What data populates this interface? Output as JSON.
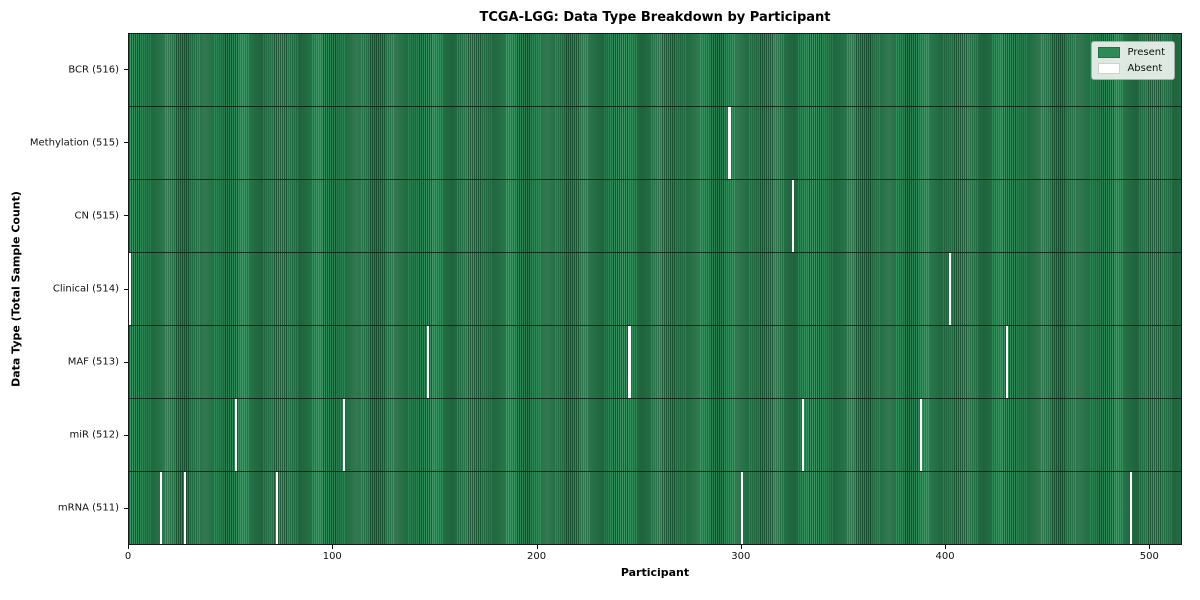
{
  "title": "TCGA-LGG: Data Type Breakdown by Participant",
  "legend": {
    "present_label": "Present",
    "absent_label": "Absent"
  },
  "colors": {
    "present": "#2e8b57",
    "absent": "#ffffff",
    "cell_edge": "#1d5c38",
    "legend_bg": "#eef3ee"
  },
  "chart_data": {
    "type": "heatmap",
    "title": "TCGA-LGG: Data Type Breakdown by Participant",
    "xlabel": "Participant",
    "ylabel": "Data Type (Total Sample Count)",
    "xlim": [
      0,
      516
    ],
    "x_ticks": [
      0,
      100,
      200,
      300,
      400,
      500
    ],
    "n_participants": 516,
    "grid": false,
    "legend_position": "upper right",
    "legend": [
      {
        "label": "Present",
        "color": "#2e8b57"
      },
      {
        "label": "Absent",
        "color": "#ffffff"
      }
    ],
    "rows": [
      {
        "data_type": "BCR",
        "label": "BCR (516)",
        "present_count": 516,
        "absent_participants": []
      },
      {
        "data_type": "Methylation",
        "label": "Methylation (515)",
        "present_count": 515,
        "absent_participants": [
          294
        ]
      },
      {
        "data_type": "CN",
        "label": "CN (515)",
        "present_count": 515,
        "absent_participants": [
          325
        ]
      },
      {
        "data_type": "Clinical",
        "label": "Clinical (514)",
        "present_count": 514,
        "absent_participants": [
          0,
          402
        ]
      },
      {
        "data_type": "MAF",
        "label": "MAF (513)",
        "present_count": 513,
        "absent_participants": [
          146,
          245,
          430
        ]
      },
      {
        "data_type": "miR",
        "label": "miR (512)",
        "present_count": 512,
        "absent_participants": [
          52,
          105,
          330,
          388
        ]
      },
      {
        "data_type": "mRNA",
        "label": "mRNA (511)",
        "present_count": 511,
        "absent_participants": [
          15,
          27,
          72,
          300,
          491
        ]
      }
    ]
  }
}
